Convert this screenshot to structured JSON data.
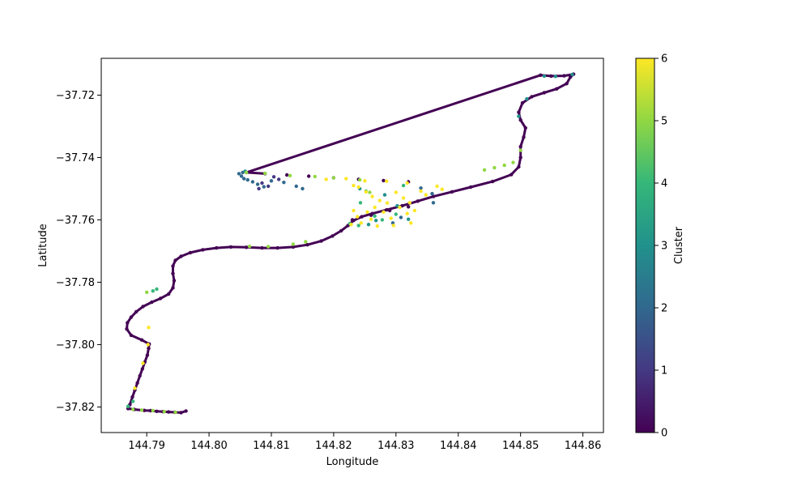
{
  "chart_data": {
    "type": "scatter",
    "title": "",
    "xlabel": "Longitude",
    "ylabel": "Latitude",
    "xlim": [
      144.7827,
      144.8633
    ],
    "ylim": [
      -37.8282,
      -37.7082
    ],
    "xticks": [
      144.79,
      144.8,
      144.81,
      144.82,
      144.83,
      144.84,
      144.85,
      144.86
    ],
    "xtick_labels": [
      "144.79",
      "144.80",
      "144.81",
      "144.82",
      "144.83",
      "144.84",
      "144.85",
      "144.86"
    ],
    "yticks": [
      -37.72,
      -37.74,
      -37.76,
      -37.78,
      -37.8,
      -37.82
    ],
    "ytick_labels": [
      "−37.72",
      "−37.74",
      "−37.76",
      "−37.78",
      "−37.80",
      "−37.82"
    ],
    "colorbar": {
      "label": "Cluster",
      "range": [
        0,
        6
      ],
      "ticks": [
        0,
        1,
        2,
        3,
        4,
        5,
        6
      ],
      "tick_labels": [
        "0",
        "1",
        "2",
        "3",
        "4",
        "5",
        "6"
      ],
      "colormap": "viridis",
      "colors": [
        "#440154",
        "#443983",
        "#31688e",
        "#21918c",
        "#35b779",
        "#90d743",
        "#fde725"
      ]
    },
    "series": [
      {
        "cluster": 0,
        "points": [
          [
            144.7963,
            -37.8213
          ],
          [
            144.7955,
            -37.8218
          ],
          [
            144.7945,
            -37.8217
          ],
          [
            144.7935,
            -37.8216
          ],
          [
            144.7926,
            -37.8215
          ],
          [
            144.7916,
            -37.8214
          ],
          [
            144.7906,
            -37.8212
          ],
          [
            144.7896,
            -37.8211
          ],
          [
            144.788,
            -37.8208
          ],
          [
            144.787,
            -37.8205
          ],
          [
            144.7873,
            -37.8192
          ],
          [
            144.7877,
            -37.8168
          ],
          [
            144.7881,
            -37.8146
          ],
          [
            144.7885,
            -37.8123
          ],
          [
            144.7889,
            -37.81
          ],
          [
            144.7893,
            -37.8078
          ],
          [
            144.7897,
            -37.8056
          ],
          [
            144.7901,
            -37.8034
          ],
          [
            144.7903,
            -37.8012
          ],
          [
            144.7904,
            -37.7998
          ],
          [
            144.7892,
            -37.7985
          ],
          [
            144.7875,
            -37.797
          ],
          [
            144.7868,
            -37.795
          ],
          [
            144.7869,
            -37.793
          ],
          [
            144.7875,
            -37.7912
          ],
          [
            144.7883,
            -37.7895
          ],
          [
            144.7894,
            -37.7878
          ],
          [
            144.7908,
            -37.7864
          ],
          [
            144.7922,
            -37.7852
          ],
          [
            144.7935,
            -37.7838
          ],
          [
            144.7942,
            -37.7818
          ],
          [
            144.7944,
            -37.7795
          ],
          [
            144.7942,
            -37.7772
          ],
          [
            144.7942,
            -37.7748
          ],
          [
            144.7946,
            -37.773
          ],
          [
            144.7955,
            -37.7717
          ],
          [
            144.797,
            -37.7705
          ],
          [
            144.799,
            -37.7696
          ],
          [
            144.8012,
            -37.769
          ],
          [
            144.8035,
            -37.7687
          ],
          [
            144.806,
            -37.7688
          ],
          [
            144.8085,
            -37.769
          ],
          [
            144.811,
            -37.769
          ],
          [
            144.8135,
            -37.7687
          ],
          [
            144.8158,
            -37.768
          ],
          [
            144.818,
            -37.7668
          ],
          [
            144.8198,
            -37.7652
          ],
          [
            144.8212,
            -37.7635
          ],
          [
            144.8223,
            -37.7618
          ],
          [
            144.8232,
            -37.7602
          ],
          [
            144.8245,
            -37.759
          ],
          [
            144.8262,
            -37.758
          ],
          [
            144.8285,
            -37.7568
          ],
          [
            144.831,
            -37.7555
          ],
          [
            144.8335,
            -37.754
          ],
          [
            144.836,
            -37.7525
          ],
          [
            144.839,
            -37.751
          ],
          [
            144.842,
            -37.7495
          ],
          [
            144.8455,
            -37.7477
          ],
          [
            144.8485,
            -37.7455
          ],
          [
            144.8497,
            -37.743
          ],
          [
            144.85,
            -37.74
          ],
          [
            144.85,
            -37.7365
          ],
          [
            144.8505,
            -37.7335
          ],
          [
            144.8508,
            -37.7305
          ],
          [
            144.85,
            -37.728
          ],
          [
            144.8497,
            -37.7255
          ],
          [
            144.8503,
            -37.7225
          ],
          [
            144.8518,
            -37.7205
          ],
          [
            144.8538,
            -37.7192
          ],
          [
            144.8558,
            -37.718
          ],
          [
            144.8574,
            -37.7163
          ],
          [
            144.858,
            -37.7142
          ],
          [
            144.8585,
            -37.7133
          ],
          [
            144.857,
            -37.7138
          ],
          [
            144.8549,
            -37.7139
          ],
          [
            144.8532,
            -37.7136
          ],
          [
            144.806,
            -37.7448
          ],
          [
            144.809,
            -37.7452
          ],
          [
            144.8125,
            -37.7456
          ],
          [
            144.816,
            -37.746
          ],
          [
            144.82,
            -37.7465
          ],
          [
            144.824,
            -37.747
          ],
          [
            144.828,
            -37.7474
          ],
          [
            144.832,
            -37.7478
          ],
          [
            144.823,
            -37.76
          ],
          [
            144.826,
            -37.7585
          ],
          [
            144.829,
            -37.757
          ],
          [
            144.832,
            -37.7558
          ]
        ]
      },
      {
        "cluster": 1,
        "points": [
          [
            144.8104,
            -37.7462
          ],
          [
            144.8112,
            -37.747
          ],
          [
            144.8085,
            -37.7482
          ],
          [
            144.8095,
            -37.7492
          ],
          [
            144.808,
            -37.75
          ]
        ]
      },
      {
        "cluster": 2,
        "points": [
          [
            144.8048,
            -37.7452
          ],
          [
            144.8052,
            -37.746
          ],
          [
            144.8056,
            -37.7468
          ],
          [
            144.8062,
            -37.7472
          ],
          [
            144.8054,
            -37.7448
          ],
          [
            144.807,
            -37.7478
          ],
          [
            144.8078,
            -37.7486
          ],
          [
            144.8088,
            -37.7494
          ],
          [
            144.81,
            -37.7475
          ],
          [
            144.812,
            -37.748
          ],
          [
            144.814,
            -37.7492
          ],
          [
            144.815,
            -37.75
          ],
          [
            144.8358,
            -37.7516
          ],
          [
            144.836,
            -37.7545
          ],
          [
            144.834,
            -37.7498
          ],
          [
            144.8295,
            -37.761
          ],
          [
            144.8308,
            -37.7592
          ]
        ]
      },
      {
        "cluster": 3,
        "points": [
          [
            144.8538,
            -37.7139
          ],
          [
            144.8556,
            -37.714
          ],
          [
            144.8583,
            -37.7134
          ],
          [
            144.8497,
            -37.7268
          ],
          [
            144.851,
            -37.7212
          ],
          [
            144.8058,
            -37.7444
          ],
          [
            144.8256,
            -37.7615
          ],
          [
            144.8268,
            -37.7602
          ],
          [
            144.8282,
            -37.752
          ],
          [
            144.8242,
            -37.75
          ],
          [
            144.8302,
            -37.7555
          ],
          [
            144.832,
            -37.7598
          ]
        ]
      },
      {
        "cluster": 4,
        "points": [
          [
            144.7878,
            -37.8182
          ],
          [
            144.787,
            -37.8198
          ],
          [
            144.791,
            -37.7828
          ],
          [
            144.7916,
            -37.7822
          ],
          [
            144.8252,
            -37.7508
          ],
          [
            144.8278,
            -37.76
          ],
          [
            144.8243,
            -37.7545
          ],
          [
            144.8226,
            -37.7612
          ],
          [
            144.8266,
            -37.7588
          ],
          [
            144.8312,
            -37.749
          ],
          [
            144.824,
            -37.7618
          ],
          [
            144.83,
            -37.7582
          ]
        ]
      },
      {
        "cluster": 5,
        "points": [
          [
            144.7878,
            -37.8208
          ],
          [
            144.7892,
            -37.821
          ],
          [
            144.791,
            -37.8212
          ],
          [
            144.7928,
            -37.8215
          ],
          [
            144.7946,
            -37.8217
          ],
          [
            144.79,
            -37.7832
          ],
          [
            144.8065,
            -37.7685
          ],
          [
            144.8095,
            -37.7686
          ],
          [
            144.8135,
            -37.7678
          ],
          [
            144.8155,
            -37.767
          ],
          [
            144.806,
            -37.7448
          ],
          [
            144.809,
            -37.7451
          ],
          [
            144.813,
            -37.7458
          ],
          [
            144.817,
            -37.7461
          ],
          [
            144.82,
            -37.7465
          ],
          [
            144.8442,
            -37.744
          ],
          [
            144.8458,
            -37.7433
          ],
          [
            144.8474,
            -37.7425
          ],
          [
            144.8488,
            -37.7416
          ],
          [
            144.85,
            -37.7377
          ],
          [
            144.8242,
            -37.7472
          ],
          [
            144.8258,
            -37.7512
          ]
        ]
      },
      {
        "cluster": 6,
        "points": [
          [
            144.7903,
            -37.7945
          ],
          [
            144.7902,
            -37.8
          ],
          [
            144.7881,
            -37.814
          ],
          [
            144.7894,
            -37.806
          ],
          [
            144.8188,
            -37.747
          ],
          [
            144.822,
            -37.7468
          ],
          [
            144.825,
            -37.7475
          ],
          [
            144.8285,
            -37.7476
          ],
          [
            144.8318,
            -37.7482
          ],
          [
            144.824,
            -37.7495
          ],
          [
            144.8252,
            -37.751
          ],
          [
            144.8262,
            -37.7525
          ],
          [
            144.8274,
            -37.7538
          ],
          [
            144.8286,
            -37.7546
          ],
          [
            144.83,
            -37.7512
          ],
          [
            144.8312,
            -37.753
          ],
          [
            144.8322,
            -37.7545
          ],
          [
            144.8232,
            -37.757
          ],
          [
            144.8238,
            -37.759
          ],
          [
            144.8244,
            -37.761
          ],
          [
            144.8254,
            -37.7575
          ],
          [
            144.8266,
            -37.756
          ],
          [
            144.828,
            -37.7575
          ],
          [
            144.8292,
            -37.7595
          ],
          [
            144.8306,
            -37.756
          ],
          [
            144.8318,
            -37.758
          ],
          [
            144.8324,
            -37.761
          ],
          [
            144.833,
            -37.757
          ],
          [
            144.8228,
            -37.7615
          ],
          [
            144.826,
            -37.7598
          ],
          [
            144.834,
            -37.7508
          ],
          [
            144.8366,
            -37.7492
          ],
          [
            144.8374,
            -37.7502
          ],
          [
            144.8348,
            -37.752
          ],
          [
            144.8232,
            -37.749
          ],
          [
            144.8296,
            -37.7618
          ],
          [
            144.827,
            -37.762
          ]
        ]
      }
    ]
  }
}
